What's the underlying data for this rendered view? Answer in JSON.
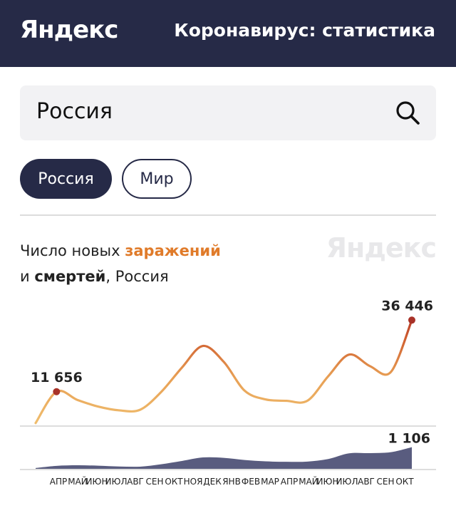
{
  "header": {
    "logo": "Яндекс",
    "title": "Коронавирус: статистика"
  },
  "search": {
    "value": "Россия"
  },
  "chips": {
    "active": "Россия",
    "inactive": "Мир"
  },
  "caption": {
    "line1_prefix": "Число новых ",
    "line1_accent": "заражений",
    "line2_prefix": "и ",
    "line2_strong": "смертей",
    "line2_suffix": ", Россия"
  },
  "watermark": "Яндекс",
  "colors": {
    "header": "#262a47",
    "cases_low": "#f0c070",
    "cases_high": "#b53a2a",
    "deaths": "#3c4068"
  },
  "chart_data": [
    {
      "type": "area",
      "title": "",
      "series_role": "заражений",
      "x": [
        "АПР",
        "МАЙ",
        "ИЮН",
        "ИЮЛ",
        "АВГ",
        "СЕН",
        "ОКТ",
        "НОЯ",
        "ДЕК",
        "ЯНВ",
        "ФЕВ",
        "МАР",
        "АПР",
        "МАЙ",
        "ИЮН",
        "ИЮЛ",
        "АВГ",
        "СЕН",
        "ОКТ"
      ],
      "values": [
        800,
        11656,
        8800,
        6500,
        5200,
        5400,
        11500,
        20000,
        27500,
        22000,
        12000,
        9000,
        8500,
        8500,
        17000,
        24500,
        20500,
        18500,
        36446
      ],
      "peak_labels": [
        {
          "label": "11 656",
          "value": 11656
        },
        {
          "label": "36 446",
          "value": 36446
        }
      ],
      "ylim": [
        0,
        38000
      ]
    },
    {
      "type": "area",
      "title": "",
      "series_role": "смертей",
      "x": [
        "АПР",
        "МАЙ",
        "ИЮН",
        "ИЮЛ",
        "АВГ",
        "СЕН",
        "ОКТ",
        "НОЯ",
        "ДЕК",
        "ЯНВ",
        "ФЕВ",
        "МАР",
        "АПР",
        "МАЙ",
        "ИЮН",
        "ИЮЛ",
        "АВГ",
        "СЕН",
        "ОКТ"
      ],
      "values": [
        40,
        150,
        180,
        160,
        120,
        110,
        230,
        400,
        580,
        560,
        450,
        380,
        360,
        370,
        500,
        790,
        800,
        850,
        1106
      ],
      "peak_labels": [
        {
          "label": "1 106",
          "value": 1106
        }
      ],
      "ylim": [
        0,
        1200
      ]
    }
  ],
  "ticks": [
    "АПР",
    "МАЙ",
    "ИЮН",
    "ИЮЛ",
    "АВГ",
    "СЕН",
    "ОКТ",
    "НОЯ",
    "ДЕК",
    "ЯНВ",
    "ФЕВ",
    "МАР",
    "АПР",
    "МАЙ",
    "ИЮН",
    "ИЮЛ",
    "АВГ",
    "СЕН",
    "ОКТ"
  ]
}
